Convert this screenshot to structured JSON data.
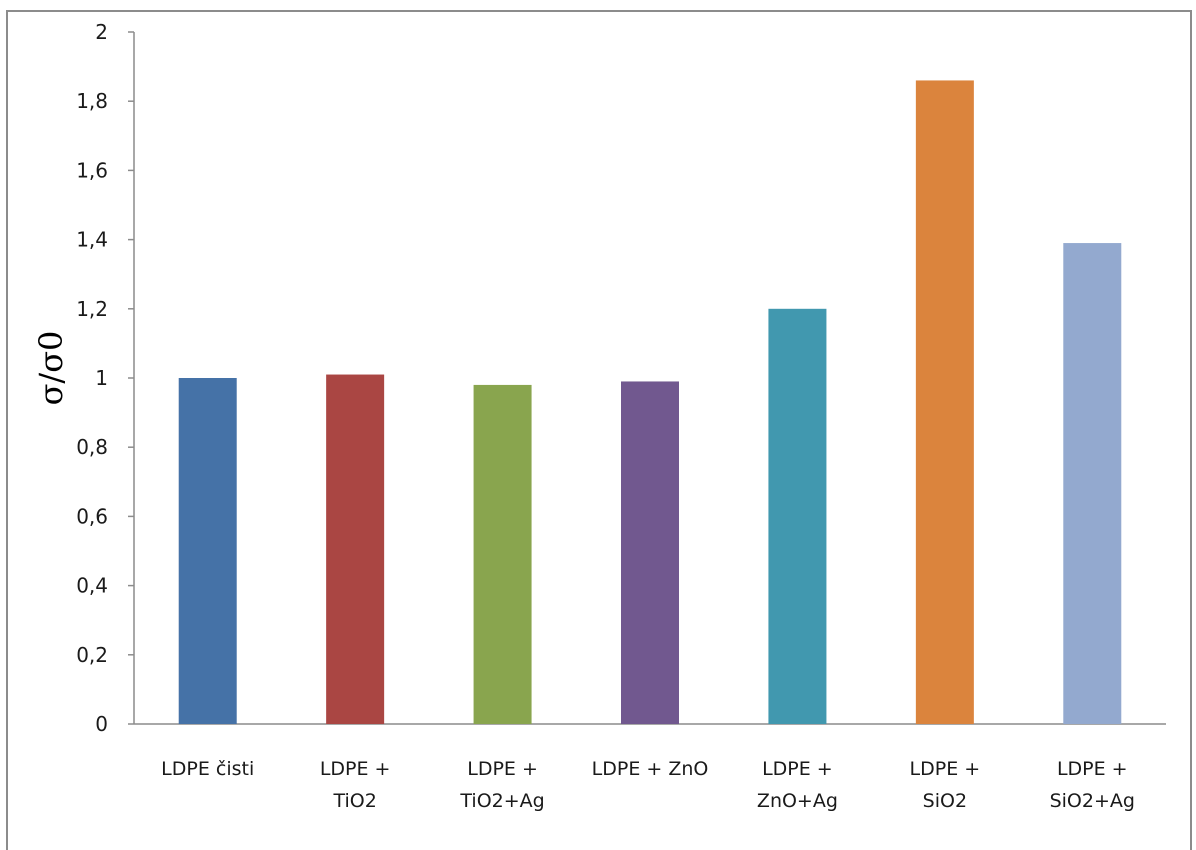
{
  "chart_data": {
    "type": "bar",
    "title": "",
    "xlabel": "",
    "ylabel": "σ/σ0",
    "ylim": [
      0,
      2
    ],
    "yticks": [
      "0",
      "0,2",
      "0,4",
      "0,6",
      "0,8",
      "1",
      "1,2",
      "1,4",
      "1,6",
      "1,8",
      "2"
    ],
    "grid": false,
    "legend": "none",
    "categories": [
      [
        "LDPE čisti"
      ],
      [
        "LDPE +",
        "TiO2"
      ],
      [
        "LDPE +",
        "TiO2+Ag"
      ],
      [
        "LDPE + ZnO"
      ],
      [
        "LDPE +",
        "ZnO+Ag"
      ],
      [
        "LDPE +",
        "SiO2"
      ],
      [
        "LDPE +",
        "SiO2+Ag"
      ]
    ],
    "values": [
      1.0,
      1.01,
      0.98,
      0.99,
      1.2,
      1.86,
      1.39
    ],
    "colors": [
      "#4572a7",
      "#aa4643",
      "#89a54e",
      "#71588f",
      "#4198af",
      "#db843d",
      "#93a9cf"
    ]
  }
}
